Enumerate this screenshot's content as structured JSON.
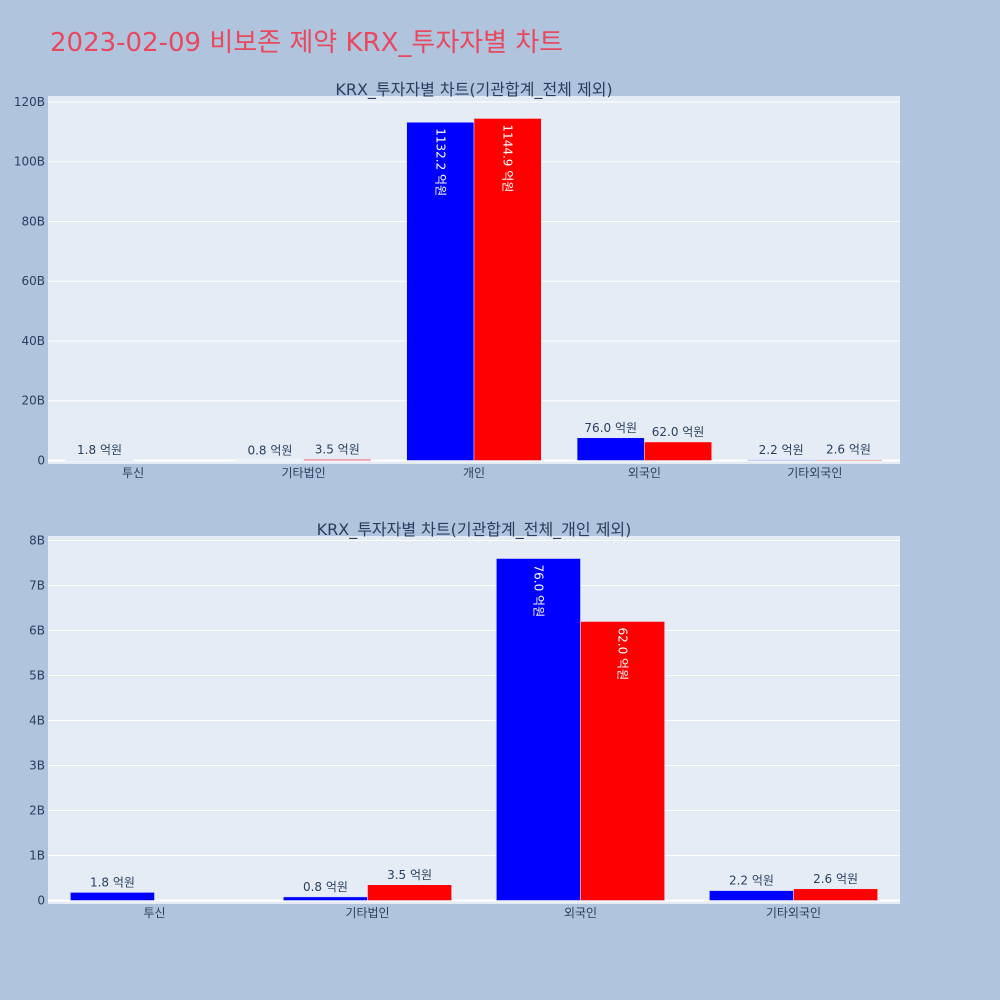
{
  "page": {
    "title": "2023-02-09 비보존 제약 KRX_투자자별 차트",
    "background": "#b0c4de",
    "title_color": "#e8495f"
  },
  "chart_data": [
    {
      "type": "bar",
      "title": "KRX_투자자별 차트(기관합계_전체 제외)",
      "categories": [
        "투신",
        "기타법인",
        "개인",
        "외국인",
        "기타외국인"
      ],
      "series": [
        {
          "color": "#0000ff",
          "values": [
            0.18,
            0.08,
            113.22,
            7.6,
            0.22
          ],
          "labels": [
            "1.8 억원",
            "0.8 억원",
            "1132.2 억원",
            "76.0 억원",
            "2.2 억원"
          ]
        },
        {
          "color": "#ff0000",
          "values": [
            0,
            0.35,
            114.49,
            6.2,
            0.26
          ],
          "labels": [
            "",
            "3.5 억원",
            "1144.9 억원",
            "62.0 억원",
            "2.6 억원"
          ]
        }
      ],
      "yticks": [
        0,
        20,
        40,
        60,
        80,
        100,
        120
      ],
      "ytick_labels": [
        "0",
        "20B",
        "40B",
        "60B",
        "80B",
        "100B",
        "120B"
      ],
      "ylim": [
        0,
        122
      ],
      "grid": true,
      "plot_bg": "#e5ecf6"
    },
    {
      "type": "bar",
      "title": "KRX_투자자별 차트(기관합계_전체_개인 제외)",
      "categories": [
        "투신",
        "기타법인",
        "외국인",
        "기타외국인"
      ],
      "series": [
        {
          "color": "#0000ff",
          "values": [
            0.18,
            0.08,
            7.6,
            0.22
          ],
          "labels": [
            "1.8 억원",
            "0.8 억원",
            "76.0 억원",
            "2.2 억원"
          ]
        },
        {
          "color": "#ff0000",
          "values": [
            0,
            0.35,
            6.2,
            0.26
          ],
          "labels": [
            "",
            "3.5 억원",
            "62.0 억원",
            "2.6 억원"
          ]
        }
      ],
      "yticks": [
        0,
        1,
        2,
        3,
        4,
        5,
        6,
        7,
        8
      ],
      "ytick_labels": [
        "0",
        "1B",
        "2B",
        "3B",
        "4B",
        "5B",
        "6B",
        "7B",
        "8B"
      ],
      "ylim": [
        0,
        8.1
      ],
      "grid": true,
      "plot_bg": "#e5ecf6"
    }
  ]
}
